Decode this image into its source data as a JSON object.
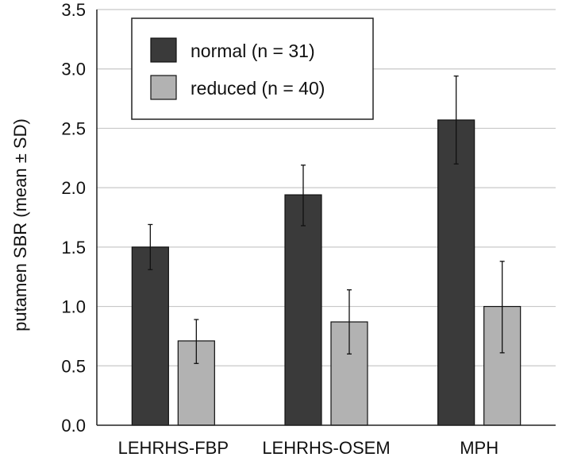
{
  "chart_data": {
    "type": "bar",
    "title": "",
    "xlabel": "",
    "ylabel": "putamen SBR (mean ± SD)",
    "ylim": [
      0,
      3.5
    ],
    "yticks": [
      0.0,
      0.5,
      1.0,
      1.5,
      2.0,
      2.5,
      3.0,
      3.5
    ],
    "ytick_labels": [
      "0.0",
      "0.5",
      "1.0",
      "1.5",
      "2.0",
      "2.5",
      "3.0",
      "3.5"
    ],
    "grid": true,
    "categories": [
      "LEHRHS-FBP",
      "LEHRHS-OSEM",
      "MPH"
    ],
    "series": [
      {
        "name": "normal (n = 31)",
        "color": "#3a3a3a",
        "values": [
          1.5,
          1.94,
          2.57
        ],
        "err_low": [
          1.31,
          1.68,
          2.2
        ],
        "err_high": [
          1.69,
          2.19,
          2.94
        ]
      },
      {
        "name": "reduced (n = 40)",
        "color": "#b2b2b2",
        "values": [
          0.71,
          0.87,
          1.0
        ],
        "err_low": [
          0.52,
          0.6,
          0.61
        ],
        "err_high": [
          0.89,
          1.14,
          1.38
        ]
      }
    ],
    "legend_position": "top-left"
  }
}
